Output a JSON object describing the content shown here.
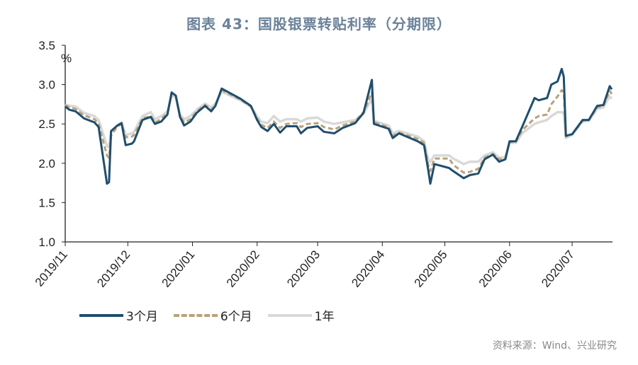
{
  "title": "图表 43：国股银票转贴利率（分期限）",
  "source": "资料来源：Wind、兴业研究",
  "chart_data": {
    "type": "line",
    "title": "图表 43：国股银票转贴利率（分期限）",
    "ylabel": "%",
    "xlabel": "",
    "ylim": [
      1.0,
      3.5
    ],
    "yticks": [
      "1.0",
      "1.5",
      "2.0",
      "2.5",
      "3.0",
      "3.5"
    ],
    "xlim": [
      "2019-11-01",
      "2020-07-20"
    ],
    "xticks": [
      {
        "date": "2019-11-01",
        "label": "2019/11"
      },
      {
        "date": "2019-12-01",
        "label": "2019/12"
      },
      {
        "date": "2020-01-01",
        "label": "2020/01"
      },
      {
        "date": "2020-02-01",
        "label": "2020/02"
      },
      {
        "date": "2020-03-01",
        "label": "2020/03"
      },
      {
        "date": "2020-04-01",
        "label": "2020/04"
      },
      {
        "date": "2020-05-01",
        "label": "2020/05"
      },
      {
        "date": "2020-06-01",
        "label": "2020/06"
      },
      {
        "date": "2020-07-01",
        "label": "2020/07"
      }
    ],
    "grid": false,
    "legend_position": "bottom",
    "x": [
      "2019-11-01",
      "2019-11-03",
      "2019-11-06",
      "2019-11-10",
      "2019-11-15",
      "2019-11-17",
      "2019-11-21",
      "2019-11-22",
      "2019-11-23",
      "2019-11-26",
      "2019-11-28",
      "2019-11-30",
      "2019-12-03",
      "2019-12-04",
      "2019-12-08",
      "2019-12-12",
      "2019-12-14",
      "2019-12-17",
      "2019-12-20",
      "2019-12-22",
      "2019-12-24",
      "2019-12-26",
      "2019-12-28",
      "2019-12-31",
      "2020-01-03",
      "2020-01-07",
      "2020-01-10",
      "2020-01-12",
      "2020-01-15",
      "2020-01-24",
      "2020-01-29",
      "2020-02-01",
      "2020-02-03",
      "2020-02-06",
      "2020-02-09",
      "2020-02-12",
      "2020-02-15",
      "2020-02-20",
      "2020-02-22",
      "2020-02-25",
      "2020-03-01",
      "2020-03-04",
      "2020-03-09",
      "2020-03-13",
      "2020-03-19",
      "2020-03-23",
      "2020-03-27",
      "2020-03-28",
      "2020-04-04",
      "2020-04-06",
      "2020-04-09",
      "2020-04-18",
      "2020-04-21",
      "2020-04-23",
      "2020-04-24",
      "2020-04-26",
      "2020-05-03",
      "2020-05-05",
      "2020-05-10",
      "2020-05-13",
      "2020-05-17",
      "2020-05-20",
      "2020-05-24",
      "2020-05-27",
      "2020-05-30",
      "2020-06-01",
      "2020-06-04",
      "2020-06-07",
      "2020-06-13",
      "2020-06-15",
      "2020-06-19",
      "2020-06-21",
      "2020-06-24",
      "2020-06-26",
      "2020-06-27",
      "2020-06-28",
      "2020-07-01",
      "2020-07-06",
      "2020-07-09",
      "2020-07-13",
      "2020-07-16",
      "2020-07-19",
      "2020-07-20"
    ],
    "series": [
      {
        "name": "3个月",
        "color": "#1f4e6e",
        "style": "solid",
        "values": [
          2.72,
          2.68,
          2.66,
          2.57,
          2.52,
          2.46,
          1.74,
          1.76,
          2.41,
          2.48,
          2.51,
          2.23,
          2.25,
          2.28,
          2.55,
          2.59,
          2.5,
          2.53,
          2.62,
          2.9,
          2.86,
          2.59,
          2.48,
          2.53,
          2.64,
          2.73,
          2.66,
          2.73,
          2.95,
          2.82,
          2.73,
          2.55,
          2.46,
          2.41,
          2.5,
          2.39,
          2.47,
          2.47,
          2.38,
          2.45,
          2.47,
          2.4,
          2.38,
          2.45,
          2.51,
          2.64,
          3.06,
          2.5,
          2.44,
          2.32,
          2.38,
          2.28,
          2.23,
          1.92,
          1.74,
          1.99,
          1.94,
          1.9,
          1.81,
          1.85,
          1.87,
          2.05,
          2.11,
          2.02,
          2.05,
          2.28,
          2.28,
          2.46,
          2.83,
          2.8,
          2.83,
          3.0,
          3.04,
          3.2,
          3.1,
          2.35,
          2.37,
          2.55,
          2.55,
          2.73,
          2.74,
          2.98,
          2.94
        ]
      },
      {
        "name": "6个月",
        "color": "#b8a27a",
        "style": "dashed",
        "values": [
          2.74,
          2.71,
          2.69,
          2.61,
          2.56,
          2.5,
          2.1,
          2.07,
          2.35,
          2.47,
          2.5,
          2.33,
          2.34,
          2.36,
          2.57,
          2.6,
          2.52,
          2.56,
          2.64,
          2.88,
          2.85,
          2.6,
          2.52,
          2.56,
          2.66,
          2.74,
          2.68,
          2.74,
          2.93,
          2.81,
          2.72,
          2.57,
          2.49,
          2.45,
          2.53,
          2.45,
          2.5,
          2.51,
          2.46,
          2.5,
          2.51,
          2.46,
          2.43,
          2.48,
          2.53,
          2.65,
          2.9,
          2.52,
          2.46,
          2.35,
          2.39,
          2.31,
          2.26,
          1.98,
          1.9,
          2.06,
          2.06,
          1.98,
          1.88,
          1.89,
          1.93,
          2.07,
          2.12,
          2.05,
          2.07,
          2.27,
          2.27,
          2.42,
          2.57,
          2.6,
          2.62,
          2.75,
          2.85,
          2.93,
          2.9,
          2.34,
          2.37,
          2.54,
          2.55,
          2.71,
          2.73,
          2.92,
          2.88
        ]
      },
      {
        "name": "1年",
        "color": "#d9d9d9",
        "style": "solid",
        "values": [
          2.75,
          2.73,
          2.72,
          2.64,
          2.6,
          2.55,
          2.22,
          2.2,
          2.4,
          2.48,
          2.52,
          2.36,
          2.38,
          2.4,
          2.6,
          2.65,
          2.56,
          2.6,
          2.66,
          2.86,
          2.84,
          2.62,
          2.56,
          2.6,
          2.68,
          2.76,
          2.71,
          2.76,
          2.91,
          2.8,
          2.72,
          2.6,
          2.53,
          2.51,
          2.6,
          2.53,
          2.56,
          2.56,
          2.53,
          2.57,
          2.58,
          2.53,
          2.5,
          2.52,
          2.55,
          2.63,
          2.82,
          2.54,
          2.48,
          2.38,
          2.41,
          2.34,
          2.28,
          2.05,
          2.02,
          2.1,
          2.1,
          2.06,
          1.99,
          2.02,
          2.02,
          2.1,
          2.14,
          2.07,
          2.08,
          2.26,
          2.26,
          2.38,
          2.5,
          2.52,
          2.55,
          2.6,
          2.65,
          2.65,
          2.63,
          2.32,
          2.36,
          2.53,
          2.54,
          2.69,
          2.71,
          2.85,
          2.82
        ]
      }
    ]
  }
}
